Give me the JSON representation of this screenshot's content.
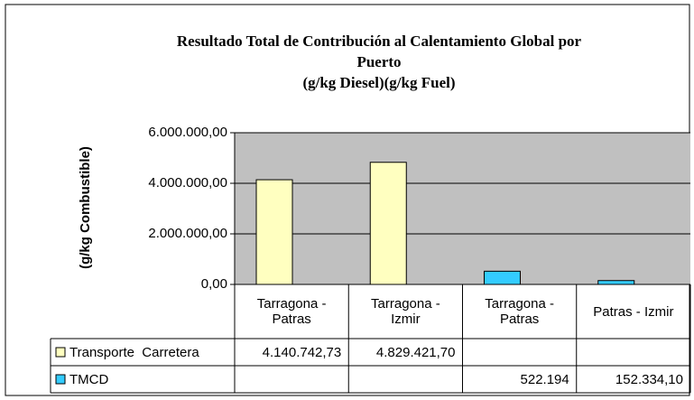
{
  "chart_data": {
    "type": "bar",
    "title": "Resultado Total de Contribución al Calentamiento Global  por\nPuerto\n(g/kg Diesel)(g/kg Fuel)",
    "y_label": "(g/kg Combustible)",
    "categories": [
      "Tarragona -\nPatras",
      "Tarragona -\nIzmir",
      "Tarragona -\nPatras",
      "Patras - Izmir"
    ],
    "series": [
      {
        "name": "Transporte  Carretera",
        "color": "#ffffc0",
        "values": [
          4140742.73,
          4829421.7,
          null,
          null
        ],
        "value_labels": [
          "4.140.742,73",
          "4.829.421,70",
          null,
          null
        ]
      },
      {
        "name": "TMCD",
        "color": "#33ccff",
        "values": [
          null,
          null,
          522194,
          152334.1
        ],
        "value_labels": [
          null,
          null,
          "522.194",
          "152.334,10"
        ]
      }
    ],
    "ylim": [
      0,
      6000000
    ],
    "yticks": [
      {
        "value": 0,
        "label": "0,00"
      },
      {
        "value": 2000000,
        "label": "2.000.000,00"
      },
      {
        "value": 4000000,
        "label": "4.000.000,00"
      },
      {
        "value": 6000000,
        "label": "6.000.000,00"
      }
    ],
    "grid": true,
    "plot_background": "#c0c0c0"
  }
}
